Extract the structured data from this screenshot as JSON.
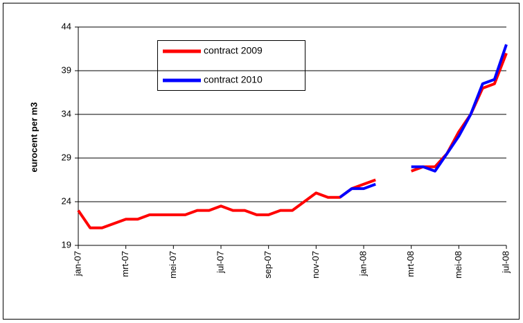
{
  "chart_data": {
    "type": "line",
    "ylabel": "eurocent per m3",
    "categories": [
      "jan-07",
      null,
      null,
      null,
      "mrt-07",
      null,
      null,
      null,
      "mei-07",
      null,
      null,
      null,
      "jul-07",
      null,
      null,
      null,
      "sep-07",
      null,
      null,
      null,
      "nov-07",
      null,
      null,
      null,
      "jan-08",
      null,
      null,
      null,
      "mrt-08",
      null,
      null,
      null,
      "mei-08",
      null,
      null,
      null,
      "jul-08"
    ],
    "series": [
      {
        "name": "contract 2009",
        "color": "#ff0000",
        "values": [
          23,
          21,
          21,
          21.5,
          22,
          22,
          22.5,
          22.5,
          22.5,
          22.5,
          23,
          23,
          23.5,
          23,
          23,
          22.5,
          22.5,
          23,
          23,
          24,
          25,
          24.5,
          24.5,
          25.5,
          26,
          26.5,
          null,
          null,
          27.5,
          28,
          28,
          29.5,
          32,
          34,
          37,
          37.5,
          41
        ]
      },
      {
        "name": "contract 2010",
        "color": "#0000ff",
        "values": [
          null,
          null,
          null,
          null,
          null,
          null,
          null,
          null,
          null,
          null,
          null,
          null,
          null,
          null,
          null,
          null,
          null,
          null,
          null,
          null,
          null,
          null,
          24.5,
          25.5,
          25.5,
          26,
          null,
          null,
          28,
          28,
          27.5,
          29.5,
          31.5,
          34,
          37.5,
          38,
          42
        ]
      }
    ],
    "ylim": [
      19,
      44
    ],
    "yticks": [
      19,
      24,
      29,
      34,
      39,
      44
    ],
    "grid": true
  }
}
